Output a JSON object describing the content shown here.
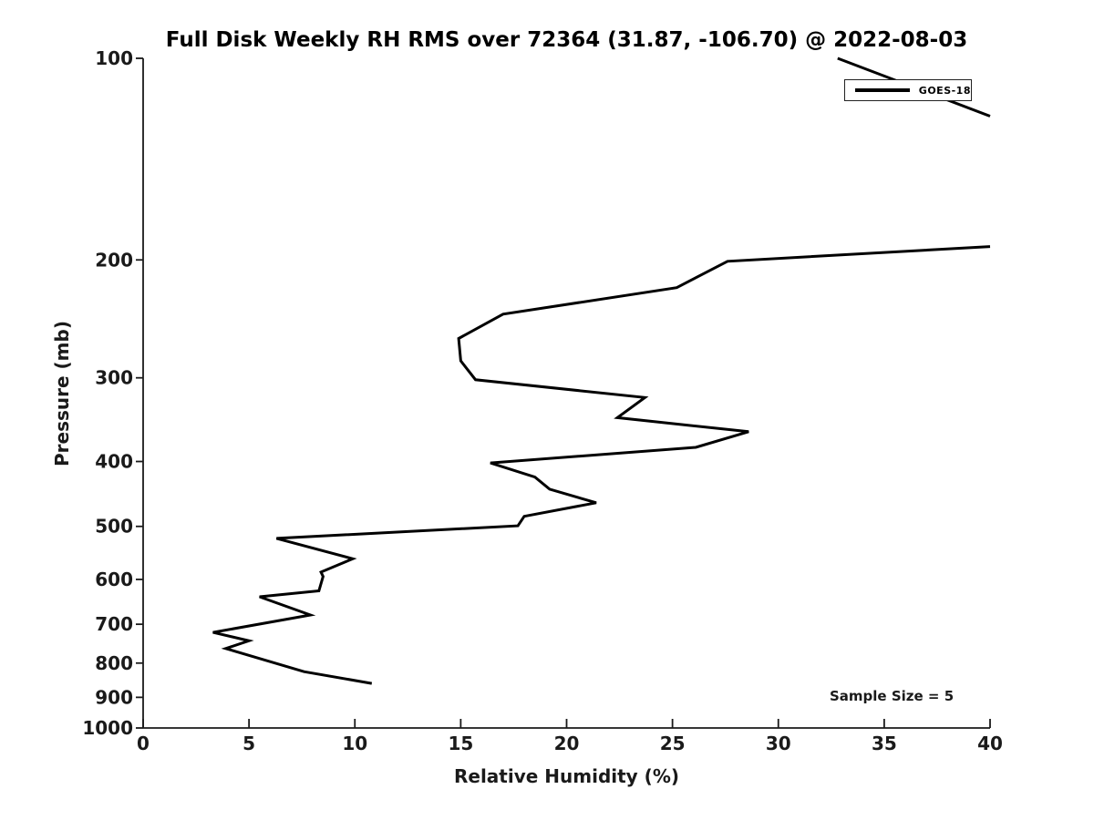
{
  "chart_data": {
    "type": "line",
    "title": "Full Disk Weekly RH RMS over 72364 (31.87, -106.70) @ 2022-08-03",
    "xlabel": "Relative Humidity (%)",
    "ylabel": "Pressure (mb)",
    "xlim": [
      0,
      40
    ],
    "ylim": [
      100,
      1000
    ],
    "yscale": "log",
    "y_inverted": true,
    "grid": false,
    "x_ticks": [
      0,
      5,
      10,
      15,
      20,
      25,
      30,
      35,
      40
    ],
    "y_ticks": [
      100,
      200,
      300,
      400,
      500,
      600,
      700,
      800,
      900,
      1000
    ],
    "line_color": "#000000",
    "line_width": 3,
    "legend": {
      "entries": [
        "GOES-18"
      ],
      "position": "upper right"
    },
    "annotation": "Sample Size = 5",
    "series": [
      {
        "name": "GOES-18",
        "note": "RH RMS exceeds the 40% axis limit between ~122 mb and ~191 mb, so the line is clipped at the right plot edge; points are [RH_percent, pressure_mb]",
        "segments": [
          [
            [
              32.8,
              100
            ],
            [
              40,
              122
            ]
          ],
          [
            [
              40,
              191
            ],
            [
              27.6,
              201
            ],
            [
              25.2,
              220
            ],
            [
              17.0,
              241
            ],
            [
              14.9,
              262
            ],
            [
              15.0,
              283
            ],
            [
              15.7,
              302
            ],
            [
              23.7,
              321
            ],
            [
              22.4,
              344
            ],
            [
              28.6,
              361
            ],
            [
              26.1,
              381
            ],
            [
              16.4,
              402
            ],
            [
              18.5,
              422
            ],
            [
              19.2,
              440
            ],
            [
              21.4,
              461
            ],
            [
              18.0,
              483
            ],
            [
              17.7,
              499
            ],
            [
              6.3,
              521
            ],
            [
              9.9,
              559
            ],
            [
              8.4,
              585
            ],
            [
              8.5,
              594
            ],
            [
              8.3,
              624
            ],
            [
              5.5,
              637
            ],
            [
              7.9,
              678
            ],
            [
              3.3,
              720
            ],
            [
              5.0,
              741
            ],
            [
              3.9,
              761
            ],
            [
              7.6,
              824
            ],
            [
              10.8,
              858
            ]
          ]
        ]
      }
    ]
  },
  "legend": {
    "label": "GOES-18"
  },
  "annotation": {
    "text": "Sample Size = 5"
  }
}
